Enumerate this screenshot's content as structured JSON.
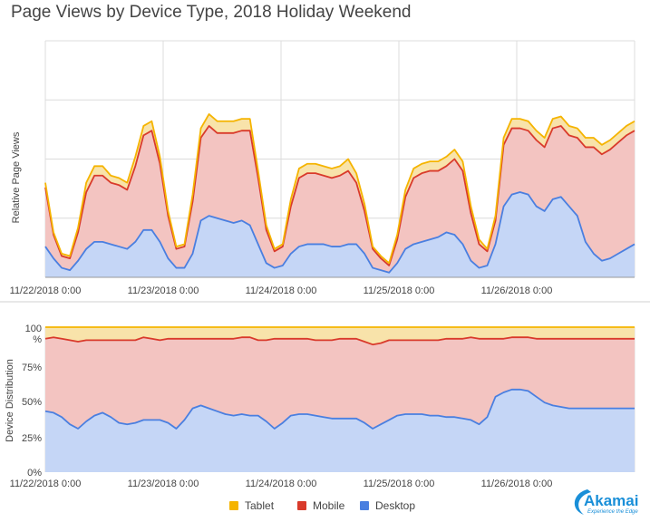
{
  "title": "Page Views by Device Type, 2018 Holiday Weekend",
  "colors": {
    "tablet": "#f5b400",
    "mobile": "#d93a2b",
    "desktop": "#4a7fe0",
    "tablet_fill": "#f8e3aa",
    "mobile_fill": "#f3c4c1",
    "desktop_fill": "#c5d6f6"
  },
  "legend": [
    {
      "name": "Tablet",
      "color": "#f5b400"
    },
    {
      "name": "Mobile",
      "color": "#d93a2b"
    },
    {
      "name": "Desktop",
      "color": "#4a7fe0"
    }
  ],
  "logo": {
    "name": "Akamai",
    "tagline": "Experience the Edge"
  },
  "chart_data": [
    {
      "type": "area",
      "stacked": true,
      "ylabel": "Relative Page Views",
      "x_tick_labels": [
        "11/22/2018 0:00",
        "11/23/2018 0:00",
        "11/24/2018 0:00",
        "11/25/2018 0:00",
        "11/26/2018 0:00"
      ],
      "x": [
        0,
        2,
        4,
        6,
        8,
        10,
        12,
        14,
        16,
        18,
        20,
        22,
        24,
        26,
        28,
        30,
        32,
        34,
        36,
        38,
        40,
        42,
        44,
        46,
        48,
        50,
        52,
        54,
        56,
        58,
        60,
        62,
        64,
        66,
        68,
        70,
        72,
        74,
        76,
        78,
        80,
        82,
        84,
        86,
        88,
        90,
        92,
        94,
        96,
        98,
        100,
        102,
        104,
        106,
        108,
        110,
        112,
        114,
        116,
        118,
        120,
        122,
        124,
        126,
        128,
        130,
        132,
        134,
        136,
        138,
        140,
        142,
        144
      ],
      "xlim": [
        0,
        144
      ],
      "ylim": [
        0,
        100
      ],
      "grid": true,
      "series": [
        {
          "name": "Desktop",
          "values": [
            13,
            8,
            4,
            3,
            7,
            12,
            15,
            15,
            14,
            13,
            12,
            15,
            20,
            20,
            15,
            8,
            4,
            4,
            10,
            24,
            26,
            25,
            24,
            23,
            24,
            22,
            14,
            6,
            4,
            5,
            10,
            13,
            14,
            14,
            14,
            13,
            13,
            14,
            14,
            10,
            4,
            3,
            2,
            6,
            12,
            14,
            15,
            16,
            17,
            19,
            18,
            14,
            7,
            4,
            5,
            14,
            30,
            35,
            36,
            35,
            30,
            28,
            33,
            34,
            30,
            26,
            15,
            10,
            7,
            8,
            10,
            12,
            14
          ]
        },
        {
          "name": "Mobile",
          "values": [
            25,
            10,
            5,
            5,
            12,
            24,
            28,
            28,
            26,
            26,
            25,
            32,
            40,
            42,
            33,
            18,
            8,
            9,
            22,
            35,
            38,
            36,
            37,
            38,
            38,
            40,
            28,
            14,
            7,
            8,
            20,
            29,
            30,
            30,
            29,
            29,
            30,
            31,
            26,
            18,
            8,
            5,
            3,
            10,
            22,
            28,
            29,
            29,
            28,
            28,
            32,
            31,
            20,
            10,
            6,
            10,
            26,
            28,
            27,
            27,
            28,
            27,
            30,
            30,
            30,
            33,
            40,
            45,
            45,
            46,
            47,
            48,
            48
          ]
        },
        {
          "name": "Tablet",
          "values": [
            2,
            1,
            1,
            1,
            2,
            4,
            4,
            4,
            3,
            3,
            3,
            4,
            4,
            4,
            3,
            2,
            1,
            1,
            3,
            4,
            5,
            5,
            5,
            5,
            5,
            5,
            3,
            2,
            1,
            1,
            3,
            4,
            4,
            4,
            4,
            4,
            4,
            5,
            4,
            3,
            1,
            1,
            1,
            2,
            3,
            4,
            4,
            4,
            4,
            4,
            4,
            4,
            3,
            2,
            1,
            2,
            3,
            4,
            4,
            4,
            4,
            4,
            4,
            4,
            4,
            4,
            4,
            4,
            4,
            4,
            4,
            4,
            4
          ]
        }
      ]
    },
    {
      "type": "area",
      "stacked": true,
      "ylabel": "Device Distribution",
      "y_tick_labels": [
        "0%",
        "25%",
        "50%",
        "75%",
        "100",
        "%"
      ],
      "x_tick_labels": [
        "11/22/2018 0:00",
        "11/23/2018 0:00",
        "11/24/2018 0:00",
        "11/25/2018 0:00",
        "11/26/2018 0:00"
      ],
      "x": [
        0,
        2,
        4,
        6,
        8,
        10,
        12,
        14,
        16,
        18,
        20,
        22,
        24,
        26,
        28,
        30,
        32,
        34,
        36,
        38,
        40,
        42,
        44,
        46,
        48,
        50,
        52,
        54,
        56,
        58,
        60,
        62,
        64,
        66,
        68,
        70,
        72,
        74,
        76,
        78,
        80,
        82,
        84,
        86,
        88,
        90,
        92,
        94,
        96,
        98,
        100,
        102,
        104,
        106,
        108,
        110,
        112,
        114,
        116,
        118,
        120,
        122,
        124,
        126,
        128,
        130,
        132,
        134,
        136,
        138,
        140,
        142,
        144
      ],
      "xlim": [
        0,
        144
      ],
      "ylim": [
        0,
        100
      ],
      "grid": true,
      "series": [
        {
          "name": "Desktop",
          "values": [
            42,
            41,
            38,
            33,
            30,
            35,
            39,
            41,
            38,
            34,
            33,
            34,
            36,
            36,
            36,
            34,
            30,
            36,
            44,
            46,
            44,
            42,
            40,
            39,
            40,
            39,
            39,
            35,
            30,
            34,
            39,
            40,
            40,
            39,
            38,
            37,
            37,
            37,
            37,
            34,
            30,
            33,
            36,
            39,
            40,
            40,
            40,
            39,
            39,
            38,
            38,
            37,
            36,
            33,
            38,
            52,
            55,
            57,
            57,
            56,
            52,
            48,
            46,
            45,
            44,
            44,
            44,
            44,
            44,
            44,
            44,
            44,
            44
          ]
        },
        {
          "name": "Mobile",
          "values": [
            50,
            52,
            54,
            58,
            60,
            56,
            52,
            50,
            53,
            57,
            58,
            57,
            57,
            56,
            55,
            58,
            62,
            56,
            48,
            46,
            48,
            50,
            52,
            53,
            53,
            54,
            52,
            56,
            62,
            58,
            53,
            52,
            52,
            52,
            53,
            54,
            55,
            55,
            55,
            56,
            58,
            56,
            55,
            52,
            51,
            51,
            51,
            52,
            52,
            54,
            54,
            55,
            57,
            59,
            54,
            40,
            37,
            36,
            36,
            37,
            40,
            44,
            46,
            47,
            48,
            48,
            48,
            48,
            48,
            48,
            48,
            48,
            48
          ]
        },
        {
          "name": "Tablet",
          "values": [
            8,
            7,
            8,
            9,
            10,
            9,
            9,
            9,
            9,
            9,
            9,
            9,
            7,
            8,
            9,
            8,
            8,
            8,
            8,
            8,
            8,
            8,
            8,
            8,
            7,
            7,
            9,
            9,
            8,
            8,
            8,
            8,
            8,
            9,
            9,
            9,
            8,
            8,
            8,
            10,
            12,
            11,
            9,
            9,
            9,
            9,
            9,
            9,
            9,
            8,
            8,
            8,
            7,
            8,
            8,
            8,
            8,
            7,
            7,
            7,
            8,
            8,
            8,
            8,
            8,
            8,
            8,
            8,
            8,
            8,
            8,
            8,
            8
          ]
        }
      ]
    }
  ]
}
